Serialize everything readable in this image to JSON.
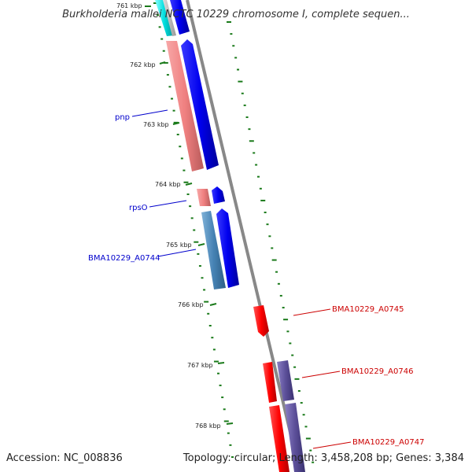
{
  "title": "Burkholderia mallei NCTC 10229 chromosome I, complete sequen...",
  "footer": {
    "accession": "Accession: NC_008836",
    "summary": "Topology: circular; Length: 3,458,208 bp; Genes: 3,384"
  },
  "ticks": [
    "761 kbp",
    "762 kbp",
    "763 kbp",
    "764 kbp",
    "765 kbp",
    "766 kbp",
    "767 kbp",
    "768 kbp"
  ],
  "genes_left": [
    {
      "name": "pnp",
      "color": "#0000cc"
    },
    {
      "name": "rpsO",
      "color": "#0000cc"
    },
    {
      "name": "BMA10229_A0744",
      "color": "#0000cc"
    }
  ],
  "genes_right": [
    {
      "name": "BMA10229_A0745",
      "color": "#cc0000"
    },
    {
      "name": "BMA10229_A0746",
      "color": "#cc0000"
    },
    {
      "name": "BMA10229_A0747",
      "color": "#cc0000"
    }
  ],
  "colors": {
    "backbone": "#888888",
    "tick_dots": "#1a7a1a",
    "forward_cds": "#0000ee",
    "forward_gene": "#f08080",
    "forward_other": "#4682b4",
    "reverse_cds": "#ff0000",
    "reverse_other": "#5c4f99",
    "cyan_feature": "#00dddd"
  }
}
